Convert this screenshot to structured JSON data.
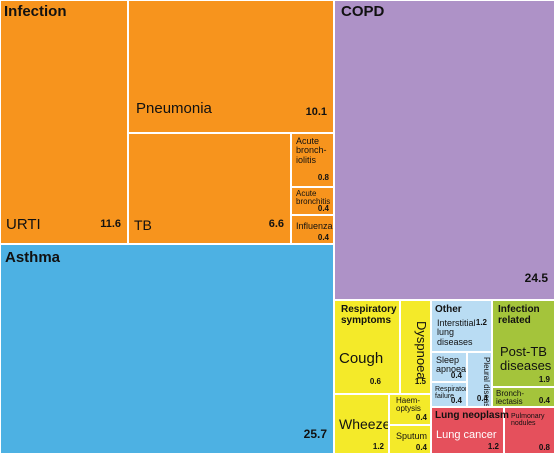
{
  "colors": {
    "infection": "#f7941d",
    "copd": "#ae92c7",
    "asthma": "#4db1e3",
    "symptoms": "#f4ea29",
    "other": "#b9dcf3",
    "infection_related": "#a4c43b",
    "neoplasm": "#e5505c"
  },
  "chart_data": {
    "type": "treemap",
    "title": "",
    "groups": [
      {
        "name": "Infection",
        "color": "#f7941d",
        "items": [
          {
            "label": "URTI",
            "value": 11.6
          },
          {
            "label": "Pneumonia",
            "value": 10.1
          },
          {
            "label": "TB",
            "value": 6.6
          },
          {
            "label": "Acute\nbronch-\niolitis",
            "value": 0.8
          },
          {
            "label": "Acute\nbronchitis",
            "value": 0.4
          },
          {
            "label": "Influenza",
            "value": 0.4
          }
        ]
      },
      {
        "name": "COPD",
        "color": "#ae92c7",
        "items": [
          {
            "label": "",
            "value": 24.5
          }
        ]
      },
      {
        "name": "Asthma",
        "color": "#4db1e3",
        "items": [
          {
            "label": "",
            "value": 25.7
          }
        ]
      },
      {
        "name": "Respiratory\nsymptoms",
        "color": "#f4ea29",
        "items": [
          {
            "label": "Cough",
            "value": 0.6
          },
          {
            "label": "Dyspnoea",
            "value": 1.5
          },
          {
            "label": "Wheeze",
            "value": 1.2
          },
          {
            "label": "Haem-\noptysis",
            "value": 0.4
          },
          {
            "label": "Sputum",
            "value": 0.4
          }
        ]
      },
      {
        "name": "Other",
        "color": "#b9dcf3",
        "items": [
          {
            "label": "Interstitial\nlung\ndiseases",
            "value": 1.2
          },
          {
            "label": "Sleep\napnoea",
            "value": 0.4
          },
          {
            "label": "Pleural\ndisease",
            "value": 0.4
          },
          {
            "label": "Respiratory\nfailure",
            "value": 0.4
          }
        ]
      },
      {
        "name": "Infection\nrelated",
        "color": "#a4c43b",
        "items": [
          {
            "label": "Post-TB\ndiseases",
            "value": 1.9
          },
          {
            "label": "Bronch-\niectasis",
            "value": 0.4
          }
        ]
      },
      {
        "name": "Lung neoplasm",
        "color": "#e5505c",
        "items": [
          {
            "label": "Lung cancer",
            "value": 1.2
          },
          {
            "label": "Pulmonary\nnodules",
            "value": 0.8
          }
        ]
      }
    ]
  }
}
